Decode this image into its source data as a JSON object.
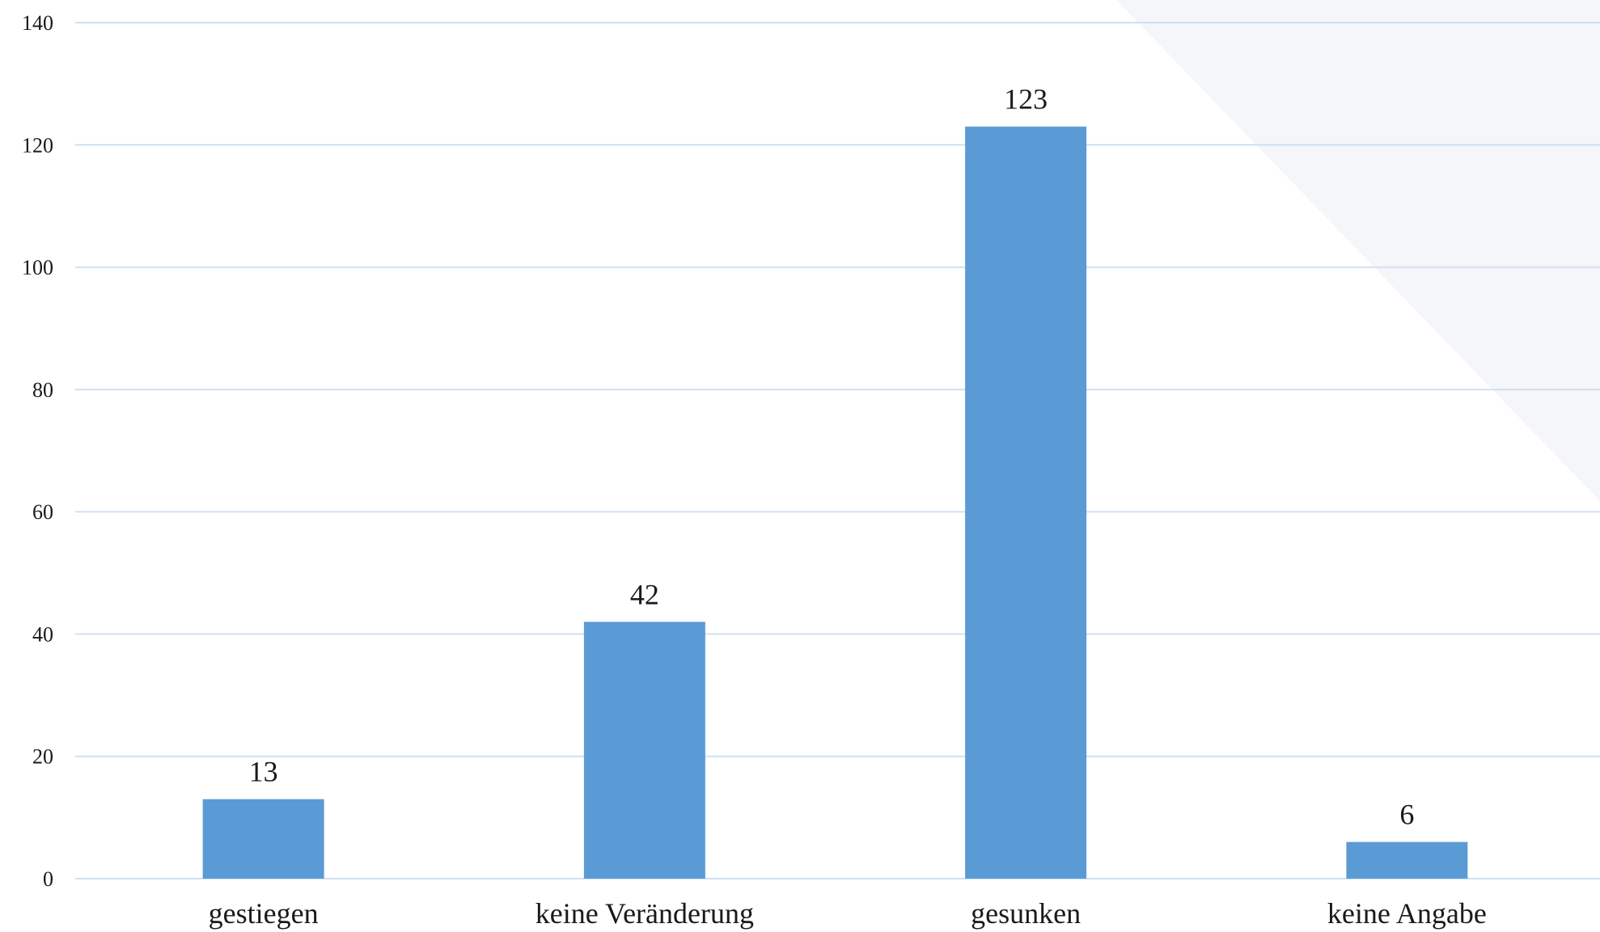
{
  "chart_data": {
    "type": "bar",
    "categories": [
      "gestiegen",
      "keine Veränderung",
      "gesunken",
      "keine Angabe"
    ],
    "values": [
      13,
      42,
      123,
      6
    ],
    "data_labels": [
      "13",
      "42",
      "123",
      "6"
    ],
    "title": "",
    "xlabel": "",
    "ylabel": "",
    "ylim": [
      0,
      140
    ],
    "yticks": [
      0,
      20,
      40,
      60,
      80,
      100,
      120,
      140
    ],
    "ytick_labels": [
      "0",
      "20",
      "40",
      "60",
      "80",
      "100",
      "120",
      "140"
    ],
    "grid": true,
    "legend": "none",
    "colors": {
      "bar": "#5b9bd5",
      "grid": "#cfe0f3",
      "background_shape": "#f4f6fa"
    }
  }
}
